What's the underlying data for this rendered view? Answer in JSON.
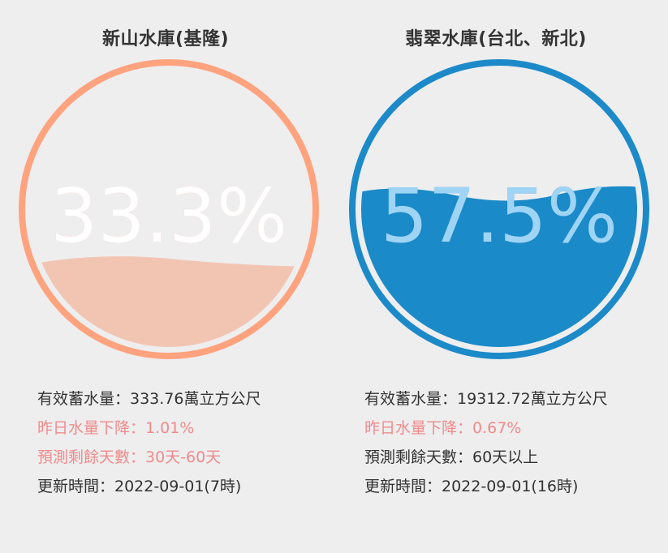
{
  "reservoirs": [
    {
      "name": "新山水庫(基隆)",
      "percent_label": "33.3%",
      "percent_value": 33.3,
      "colors": {
        "ring": "#ffa37f",
        "water": "#f2c5b3",
        "text_outside": "#ffa37f",
        "text_inside": "#ffffff"
      },
      "info": {
        "storage": "有效蓄水量：333.76萬立方公尺",
        "daily_change": "昨日水量下降：1.01%",
        "days_left": "預測剩餘天數：30天-60天",
        "updated": "更新時間：2022-09-01(7時)"
      }
    },
    {
      "name": "翡翠水庫(台北、新北)",
      "percent_label": "57.5%",
      "percent_value": 57.5,
      "colors": {
        "ring": "#1c8ac8",
        "water": "#1a8ac8",
        "text_outside": "#0e5c8a",
        "text_inside": "#9fd4f5"
      },
      "info": {
        "storage": "有效蓄水量：19312.72萬立方公尺",
        "daily_change": "昨日水量下降：0.67%",
        "days_left": "預測剩餘天數：60天以上",
        "updated": "更新時間：2022-09-01(16時)"
      }
    }
  ]
}
